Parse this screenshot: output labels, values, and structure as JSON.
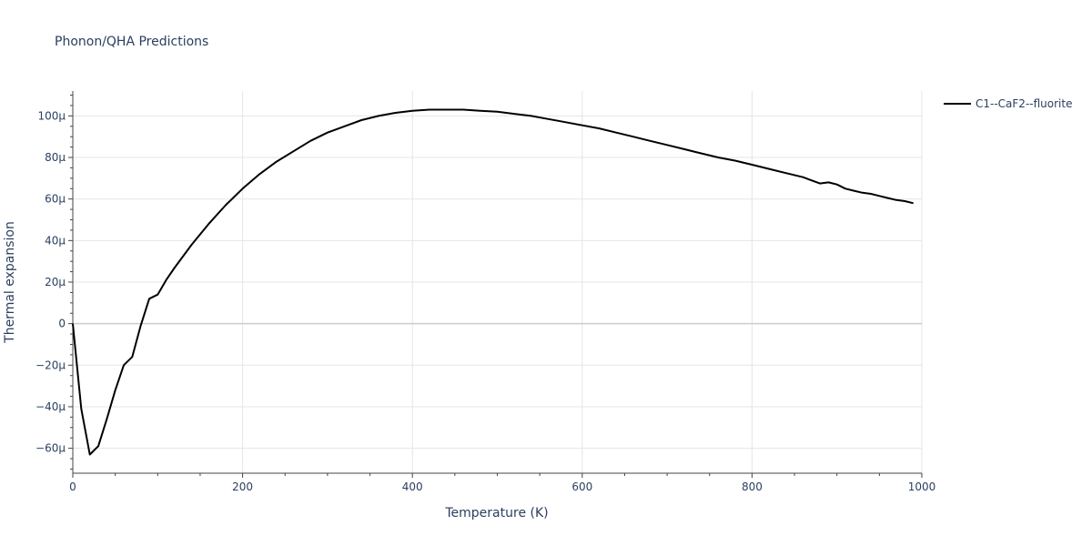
{
  "chart_data": {
    "type": "line",
    "title": "Phonon/QHA Predictions",
    "xlabel": "Temperature (K)",
    "ylabel": "Thermal expansion",
    "xlim": [
      0,
      1000
    ],
    "ylim": [
      -72,
      112
    ],
    "x_ticks": [
      0,
      200,
      400,
      600,
      800,
      1000
    ],
    "x_tick_labels": [
      "0",
      "200",
      "400",
      "600",
      "800",
      "1000"
    ],
    "y_ticks": [
      -60,
      -40,
      -20,
      0,
      20,
      40,
      60,
      80,
      100
    ],
    "y_tick_labels": [
      "−60μ",
      "−40μ",
      "−20μ",
      "0",
      "20μ",
      "40μ",
      "60μ",
      "80μ",
      "100μ"
    ],
    "grid": true,
    "legend_position": "top-right",
    "series": [
      {
        "name": "C1--CaF2--fluorite",
        "color": "#000000",
        "x": [
          0,
          10,
          20,
          30,
          40,
          50,
          60,
          70,
          80,
          90,
          100,
          110,
          120,
          140,
          160,
          180,
          200,
          220,
          240,
          260,
          280,
          300,
          320,
          340,
          360,
          380,
          400,
          420,
          440,
          460,
          480,
          500,
          520,
          540,
          560,
          580,
          600,
          620,
          640,
          660,
          680,
          700,
          720,
          740,
          760,
          780,
          800,
          820,
          840,
          860,
          870,
          880,
          890,
          900,
          910,
          920,
          930,
          940,
          950,
          960,
          970,
          980,
          990
        ],
        "y": [
          0,
          -41,
          -63,
          -59,
          -46,
          -32,
          -20,
          -16,
          -1,
          12,
          14,
          21,
          27,
          38,
          48,
          57,
          65,
          72,
          78,
          83,
          88,
          92,
          95,
          98,
          100,
          101.5,
          102.5,
          103,
          103,
          103,
          102.5,
          102,
          101,
          100,
          98.5,
          97,
          95.5,
          94,
          92,
          90,
          88,
          86,
          84,
          82,
          80,
          78.5,
          76.5,
          74.5,
          72.5,
          70.5,
          69,
          67.5,
          68,
          67,
          65,
          64,
          63,
          62.5,
          61.5,
          60.5,
          59.5,
          59,
          58
        ]
      }
    ]
  }
}
